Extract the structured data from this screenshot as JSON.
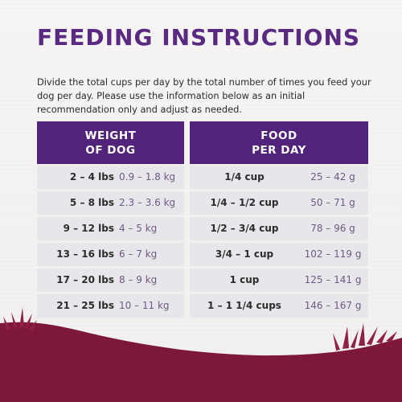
{
  "title": "FEEDING INSTRUCTIONS",
  "intro": "Divide the total cups per day by the total number of times you feed your dog per day. Please use the information below as an initial recommendation only and adjust as needed.",
  "table": {
    "headers": {
      "weight_line1": "WEIGHT",
      "weight_line2": "OF DOG",
      "food_line1": "FOOD",
      "food_line2": "PER DAY"
    },
    "rows": [
      {
        "lbs": "2 – 4 lbs",
        "kg": "0.9 – 1.8 kg",
        "cups": "1/4 cup",
        "grams": "25 – 42 g"
      },
      {
        "lbs": "5 – 8 lbs",
        "kg": "2.3 – 3.6 kg",
        "cups": "1/4 – 1/2 cup",
        "grams": "50 – 71 g"
      },
      {
        "lbs": "9 – 12 lbs",
        "kg": "4 – 5 kg",
        "cups": "1/2 – 3/4 cup",
        "grams": "78 – 96 g"
      },
      {
        "lbs": "13 – 16 lbs",
        "kg": "6 – 7 kg",
        "cups": "3/4 – 1 cup",
        "grams": "102 – 119 g"
      },
      {
        "lbs": "17 – 20 lbs",
        "kg": "8 – 9 kg",
        "cups": "1 cup",
        "grams": "125 – 141 g"
      },
      {
        "lbs": "21 – 25 lbs",
        "kg": "10 – 11 kg",
        "cups": "1 – 1 1/4 cups",
        "grams": "146 – 167 g"
      }
    ]
  },
  "colors": {
    "title": "#5a2a82",
    "header_bg": "#52237b",
    "row_bg": "#e7e6ea",
    "ground": "#7d1838",
    "grass": "#8e2043"
  }
}
